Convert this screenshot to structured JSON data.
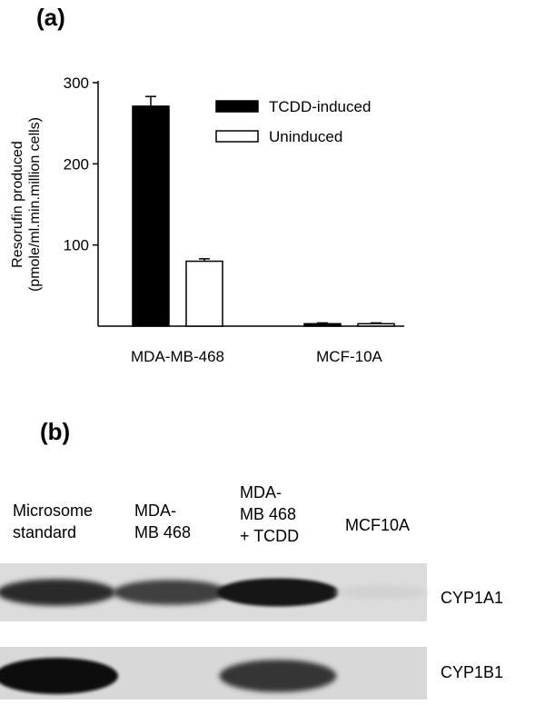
{
  "panel_a": {
    "label": "(a)"
  },
  "panel_b": {
    "label": "(b)",
    "lanes": [
      "Microsome\nstandard",
      "MDA-\nMB 468",
      "MDA-\nMB 468\n+ TCDD",
      "MCF10A"
    ],
    "bands": [
      "CYP1A1",
      "CYP1B1"
    ],
    "band_intensity": {
      "CYP1A1": [
        0.85,
        0.75,
        0.95,
        0.05
      ],
      "CYP1B1": [
        1.0,
        0.02,
        0.8,
        0.02
      ]
    }
  },
  "colors": {
    "induced": "#000000",
    "uninduced": "#ffffff",
    "axis": "#000000"
  },
  "chart_data": {
    "type": "bar",
    "categories": [
      "MDA-MB-468",
      "MCF-10A"
    ],
    "series": [
      {
        "name": "TCDD-induced",
        "values": [
          271,
          3
        ],
        "errors": [
          12,
          1
        ]
      },
      {
        "name": "Uninduced",
        "values": [
          80,
          3
        ],
        "errors": [
          3,
          1
        ]
      }
    ],
    "ylabel": "Resorufin produced\n(pmole/ml.min.million cells)",
    "ylim": [
      0,
      300
    ],
    "yticks": [
      100,
      200,
      300
    ],
    "legend_position": "top-right",
    "grid": false
  }
}
